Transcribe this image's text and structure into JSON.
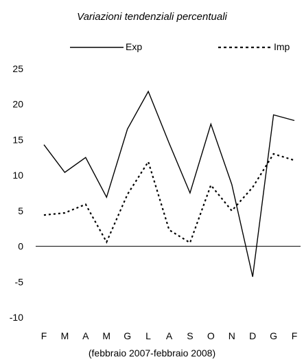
{
  "chart_data": {
    "type": "line",
    "title": "Variazioni tendenziali percentuali",
    "xlabel": "(febbraio 2007-febbraio 2008)",
    "ylabel": "",
    "categories": [
      "F",
      "M",
      "A",
      "M",
      "G",
      "L",
      "A",
      "S",
      "O",
      "N",
      "D",
      "G",
      "F"
    ],
    "ylim": [
      -10,
      25
    ],
    "yticks": [
      -10,
      -5,
      0,
      5,
      10,
      15,
      20,
      25
    ],
    "grid": false,
    "legend": "top",
    "series": [
      {
        "name": "Exp",
        "style": "solid",
        "color": "#000000",
        "values": [
          14.3,
          10.4,
          12.5,
          6.9,
          16.5,
          21.8,
          14.5,
          7.5,
          17.2,
          8.7,
          -4.3,
          18.5,
          17.7
        ]
      },
      {
        "name": "Imp",
        "style": "dotted",
        "color": "#000000",
        "values": [
          4.4,
          4.7,
          5.9,
          0.6,
          7.3,
          11.9,
          2.3,
          0.5,
          8.6,
          5.0,
          8.3,
          13.0,
          12.1
        ]
      }
    ]
  }
}
